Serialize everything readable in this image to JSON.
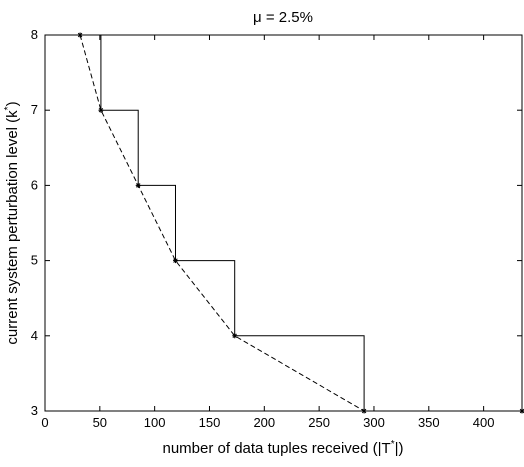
{
  "chart_data": {
    "type": "line",
    "title": "μ = 2.5%",
    "xlabel_main": "number of data tuples received (|T",
    "xlabel_sup": "*",
    "xlabel_end": "|)",
    "ylabel_main": "current system perturbation level (k",
    "ylabel_sup": "*",
    "ylabel_end": ")",
    "xlim": [
      0,
      435
    ],
    "ylim": [
      3,
      8
    ],
    "xticks": [
      0,
      50,
      100,
      150,
      200,
      250,
      300,
      350,
      400
    ],
    "yticks": [
      3,
      4,
      5,
      6,
      7,
      8
    ],
    "series": [
      {
        "style": "dashed-with-star-markers",
        "x": [
          32,
          51,
          85,
          119,
          173,
          291
        ],
        "y": [
          8,
          7,
          6,
          5,
          4,
          3
        ]
      },
      {
        "style": "solid-step",
        "x": [
          51,
          51,
          85,
          85,
          119,
          119,
          173,
          173,
          291,
          291,
          435
        ],
        "y": [
          8,
          7,
          7,
          6,
          6,
          5,
          5,
          4,
          4,
          3,
          3
        ]
      }
    ],
    "extra_markers": [
      {
        "x": 435,
        "y": 3
      }
    ]
  }
}
